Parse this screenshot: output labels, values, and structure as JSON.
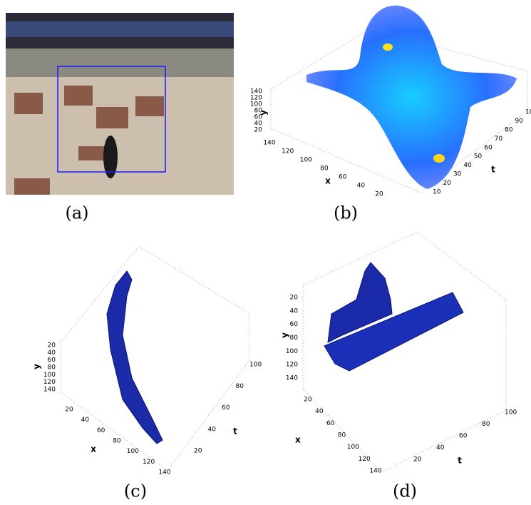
{
  "panels": [
    {
      "caption": "(a)"
    },
    {
      "caption": "(b)",
      "axes": {
        "y": {
          "label": "y",
          "ticks": [
            140,
            120,
            100,
            80,
            60,
            40,
            20
          ]
        },
        "x": {
          "label": "x",
          "ticks": [
            140,
            120,
            100,
            80,
            60,
            40,
            20
          ]
        },
        "t": {
          "label": "t",
          "ticks": [
            10,
            20,
            30,
            40,
            50,
            60,
            70,
            80,
            90,
            10
          ]
        }
      }
    },
    {
      "caption": "(c)",
      "axes": {
        "y": {
          "label": "y",
          "ticks": [
            20,
            40,
            60,
            80,
            100,
            120,
            140
          ]
        },
        "x": {
          "label": "x",
          "ticks": [
            20,
            40,
            60,
            80,
            100,
            120,
            140
          ]
        },
        "t": {
          "label": "t",
          "ticks": [
            20,
            40,
            60,
            80,
            100
          ]
        }
      }
    },
    {
      "caption": "(d)",
      "axes": {
        "y": {
          "label": "y",
          "ticks": [
            20,
            40,
            60,
            80,
            100,
            120,
            140
          ]
        },
        "x": {
          "label": "x",
          "ticks": [
            20,
            40,
            60,
            80,
            100,
            120,
            140
          ]
        },
        "t": {
          "label": "t",
          "ticks": [
            20,
            40,
            60,
            80,
            100
          ]
        }
      }
    }
  ]
}
